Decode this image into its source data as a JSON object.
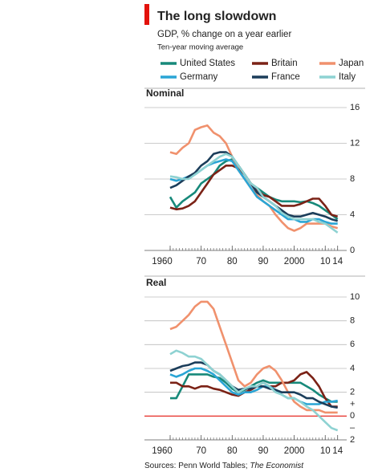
{
  "header": {
    "title": "The long slowdown",
    "subtitle": "GDP, % change on a year earlier",
    "note": "Ten-year moving average"
  },
  "source": {
    "text": "Sources: Penn World Tables; ",
    "italic": "The Economist"
  },
  "chart_data": [
    {
      "type": "line",
      "title": "Nominal",
      "x": [
        1960,
        1962,
        1964,
        1966,
        1968,
        1970,
        1972,
        1974,
        1976,
        1978,
        1980,
        1982,
        1984,
        1986,
        1988,
        1990,
        1992,
        1994,
        1996,
        1998,
        2000,
        2002,
        2004,
        2006,
        2008,
        2010,
        2012,
        2014
      ],
      "xlim": [
        1960,
        2017
      ],
      "xticks": [
        1960,
        {
          "value": 1970,
          "label": "70"
        },
        {
          "value": 1980,
          "label": "80"
        },
        {
          "value": 1990,
          "label": "90"
        },
        2000,
        {
          "value": 2010,
          "label": "10"
        },
        {
          "value": 2014,
          "label": "14"
        }
      ],
      "ylim": [
        0,
        16
      ],
      "yticks": [
        0,
        4,
        8,
        12,
        16
      ],
      "grid": true,
      "series": [
        {
          "name": "United States",
          "color": "#17897a",
          "values": [
            6,
            4.8,
            5.5,
            6,
            6.5,
            7.5,
            8,
            8.5,
            9.5,
            10,
            10.2,
            9.5,
            8.5,
            7.5,
            7,
            6.5,
            6,
            5.7,
            5.5,
            5.5,
            5.5,
            5.4,
            5.5,
            5.3,
            5,
            4.5,
            4,
            3.5
          ]
        },
        {
          "name": "Britain",
          "color": "#7b2216",
          "values": [
            4.8,
            4.6,
            4.7,
            5,
            5.5,
            6.5,
            7.5,
            8.5,
            9,
            9.5,
            9.5,
            9.2,
            8.5,
            7.5,
            6.8,
            6.2,
            6,
            5.5,
            5,
            5,
            5,
            5.2,
            5.5,
            5.8,
            5.8,
            5,
            4,
            3.8
          ]
        },
        {
          "name": "Japan",
          "color": "#f0916d",
          "values": [
            11,
            10.8,
            11.5,
            12,
            13.5,
            13.8,
            14,
            13.2,
            12.8,
            12,
            10.5,
            9,
            8,
            7,
            6.2,
            5.5,
            5,
            4,
            3.2,
            2.5,
            2.2,
            2.5,
            3,
            3,
            3,
            3,
            2.7,
            2.5
          ]
        },
        {
          "name": "Germany",
          "color": "#2aa5d5",
          "values": [
            8,
            7.8,
            8,
            8.3,
            8.5,
            9,
            9.5,
            9.8,
            10,
            10.2,
            10,
            9,
            8,
            7,
            6,
            5.5,
            5,
            4.5,
            4,
            3.5,
            3.5,
            3.2,
            3.2,
            3.5,
            3.5,
            3.2,
            3,
            3
          ]
        },
        {
          "name": "France",
          "color": "#1b3d5a",
          "values": [
            7,
            7.3,
            7.8,
            8.3,
            8.7,
            9.5,
            10,
            10.8,
            11,
            11,
            10.5,
            9.5,
            8.5,
            7.5,
            6.5,
            6,
            5.5,
            5,
            4.5,
            4,
            3.8,
            3.8,
            4,
            4.2,
            4,
            3.8,
            3.5,
            3.3
          ]
        },
        {
          "name": "Italy",
          "color": "#8ed2d2",
          "values": [
            8.3,
            8.2,
            8,
            8,
            8.5,
            9,
            9.5,
            10,
            10.5,
            10.8,
            10.5,
            9.5,
            8.5,
            7.5,
            7,
            6,
            5.5,
            5,
            4.2,
            3.8,
            3.5,
            3.5,
            3.5,
            3.5,
            3.2,
            3,
            2.5,
            2
          ]
        }
      ]
    },
    {
      "type": "line",
      "title": "Real",
      "x": [
        1960,
        1962,
        1964,
        1966,
        1968,
        1970,
        1972,
        1974,
        1976,
        1978,
        1980,
        1982,
        1984,
        1986,
        1988,
        1990,
        1992,
        1994,
        1996,
        1998,
        2000,
        2002,
        2004,
        2006,
        2008,
        2010,
        2012,
        2014
      ],
      "xlim": [
        1960,
        2017
      ],
      "xticks": [
        1960,
        {
          "value": 1970,
          "label": "70"
        },
        {
          "value": 1980,
          "label": "80"
        },
        {
          "value": 1990,
          "label": "90"
        },
        2000,
        {
          "value": 2010,
          "label": "10"
        },
        {
          "value": 2014,
          "label": "14"
        }
      ],
      "ylim": [
        -2,
        10
      ],
      "yticks": [
        {
          "value": -2,
          "label": "2"
        },
        0,
        2,
        4,
        6,
        8,
        10
      ],
      "grid": true,
      "annotations": [
        "+",
        "–"
      ],
      "series": [
        {
          "name": "United States",
          "color": "#17897a",
          "values": [
            1.5,
            1.5,
            2.5,
            3.5,
            3.5,
            3.5,
            3.5,
            3.3,
            3.2,
            2.8,
            2.3,
            2,
            2.2,
            2.5,
            2.8,
            3,
            2.8,
            2.8,
            2.8,
            2.8,
            2.8,
            2.8,
            2.5,
            2.2,
            1.8,
            1.5,
            1.2,
            1.2
          ]
        },
        {
          "name": "Britain",
          "color": "#7b2216",
          "values": [
            2.8,
            2.8,
            2.5,
            2.5,
            2.3,
            2.5,
            2.5,
            2.3,
            2.2,
            2,
            1.8,
            1.7,
            2,
            2.2,
            2.5,
            2.8,
            2.5,
            2.5,
            2.8,
            2.8,
            3,
            3.5,
            3.7,
            3.2,
            2.5,
            1.5,
            0.8,
            0.8
          ]
        },
        {
          "name": "Japan",
          "color": "#f0916d",
          "values": [
            7.3,
            7.5,
            8,
            8.5,
            9.2,
            9.6,
            9.6,
            9,
            7.5,
            6,
            4.5,
            3,
            2.5,
            2.8,
            3.5,
            4,
            4.2,
            3.8,
            3,
            2,
            1.2,
            0.8,
            0.5,
            0.5,
            0.5,
            0.3,
            0.3,
            0.3
          ]
        },
        {
          "name": "Germany",
          "color": "#2aa5d5",
          "values": [
            3.5,
            3.3,
            3.5,
            3.8,
            4,
            4,
            3.8,
            3.5,
            3,
            2.5,
            2,
            1.8,
            2,
            2,
            2.2,
            2.5,
            2.5,
            2.2,
            1.8,
            1.5,
            1.5,
            1.2,
            1,
            1,
            1,
            1.2,
            1.2,
            1.3
          ]
        },
        {
          "name": "France",
          "color": "#1b3d5a",
          "values": [
            3.8,
            4,
            4.2,
            4.3,
            4.5,
            4.5,
            4.3,
            3.8,
            3.5,
            3,
            2.5,
            2.2,
            2.3,
            2.3,
            2.5,
            2.5,
            2.3,
            2.2,
            2,
            2,
            2,
            1.8,
            1.5,
            1.5,
            1.2,
            1,
            0.8,
            0.7
          ]
        },
        {
          "name": "Italy",
          "color": "#8ed2d2",
          "values": [
            5.2,
            5.5,
            5.3,
            5,
            5,
            4.8,
            4.3,
            3.8,
            3.5,
            3,
            2.5,
            2,
            2.3,
            2.5,
            2.5,
            2.8,
            2.5,
            2,
            1.8,
            1.5,
            1.5,
            1.2,
            0.8,
            0.5,
            0,
            -0.5,
            -1,
            -1.2
          ]
        }
      ]
    }
  ]
}
